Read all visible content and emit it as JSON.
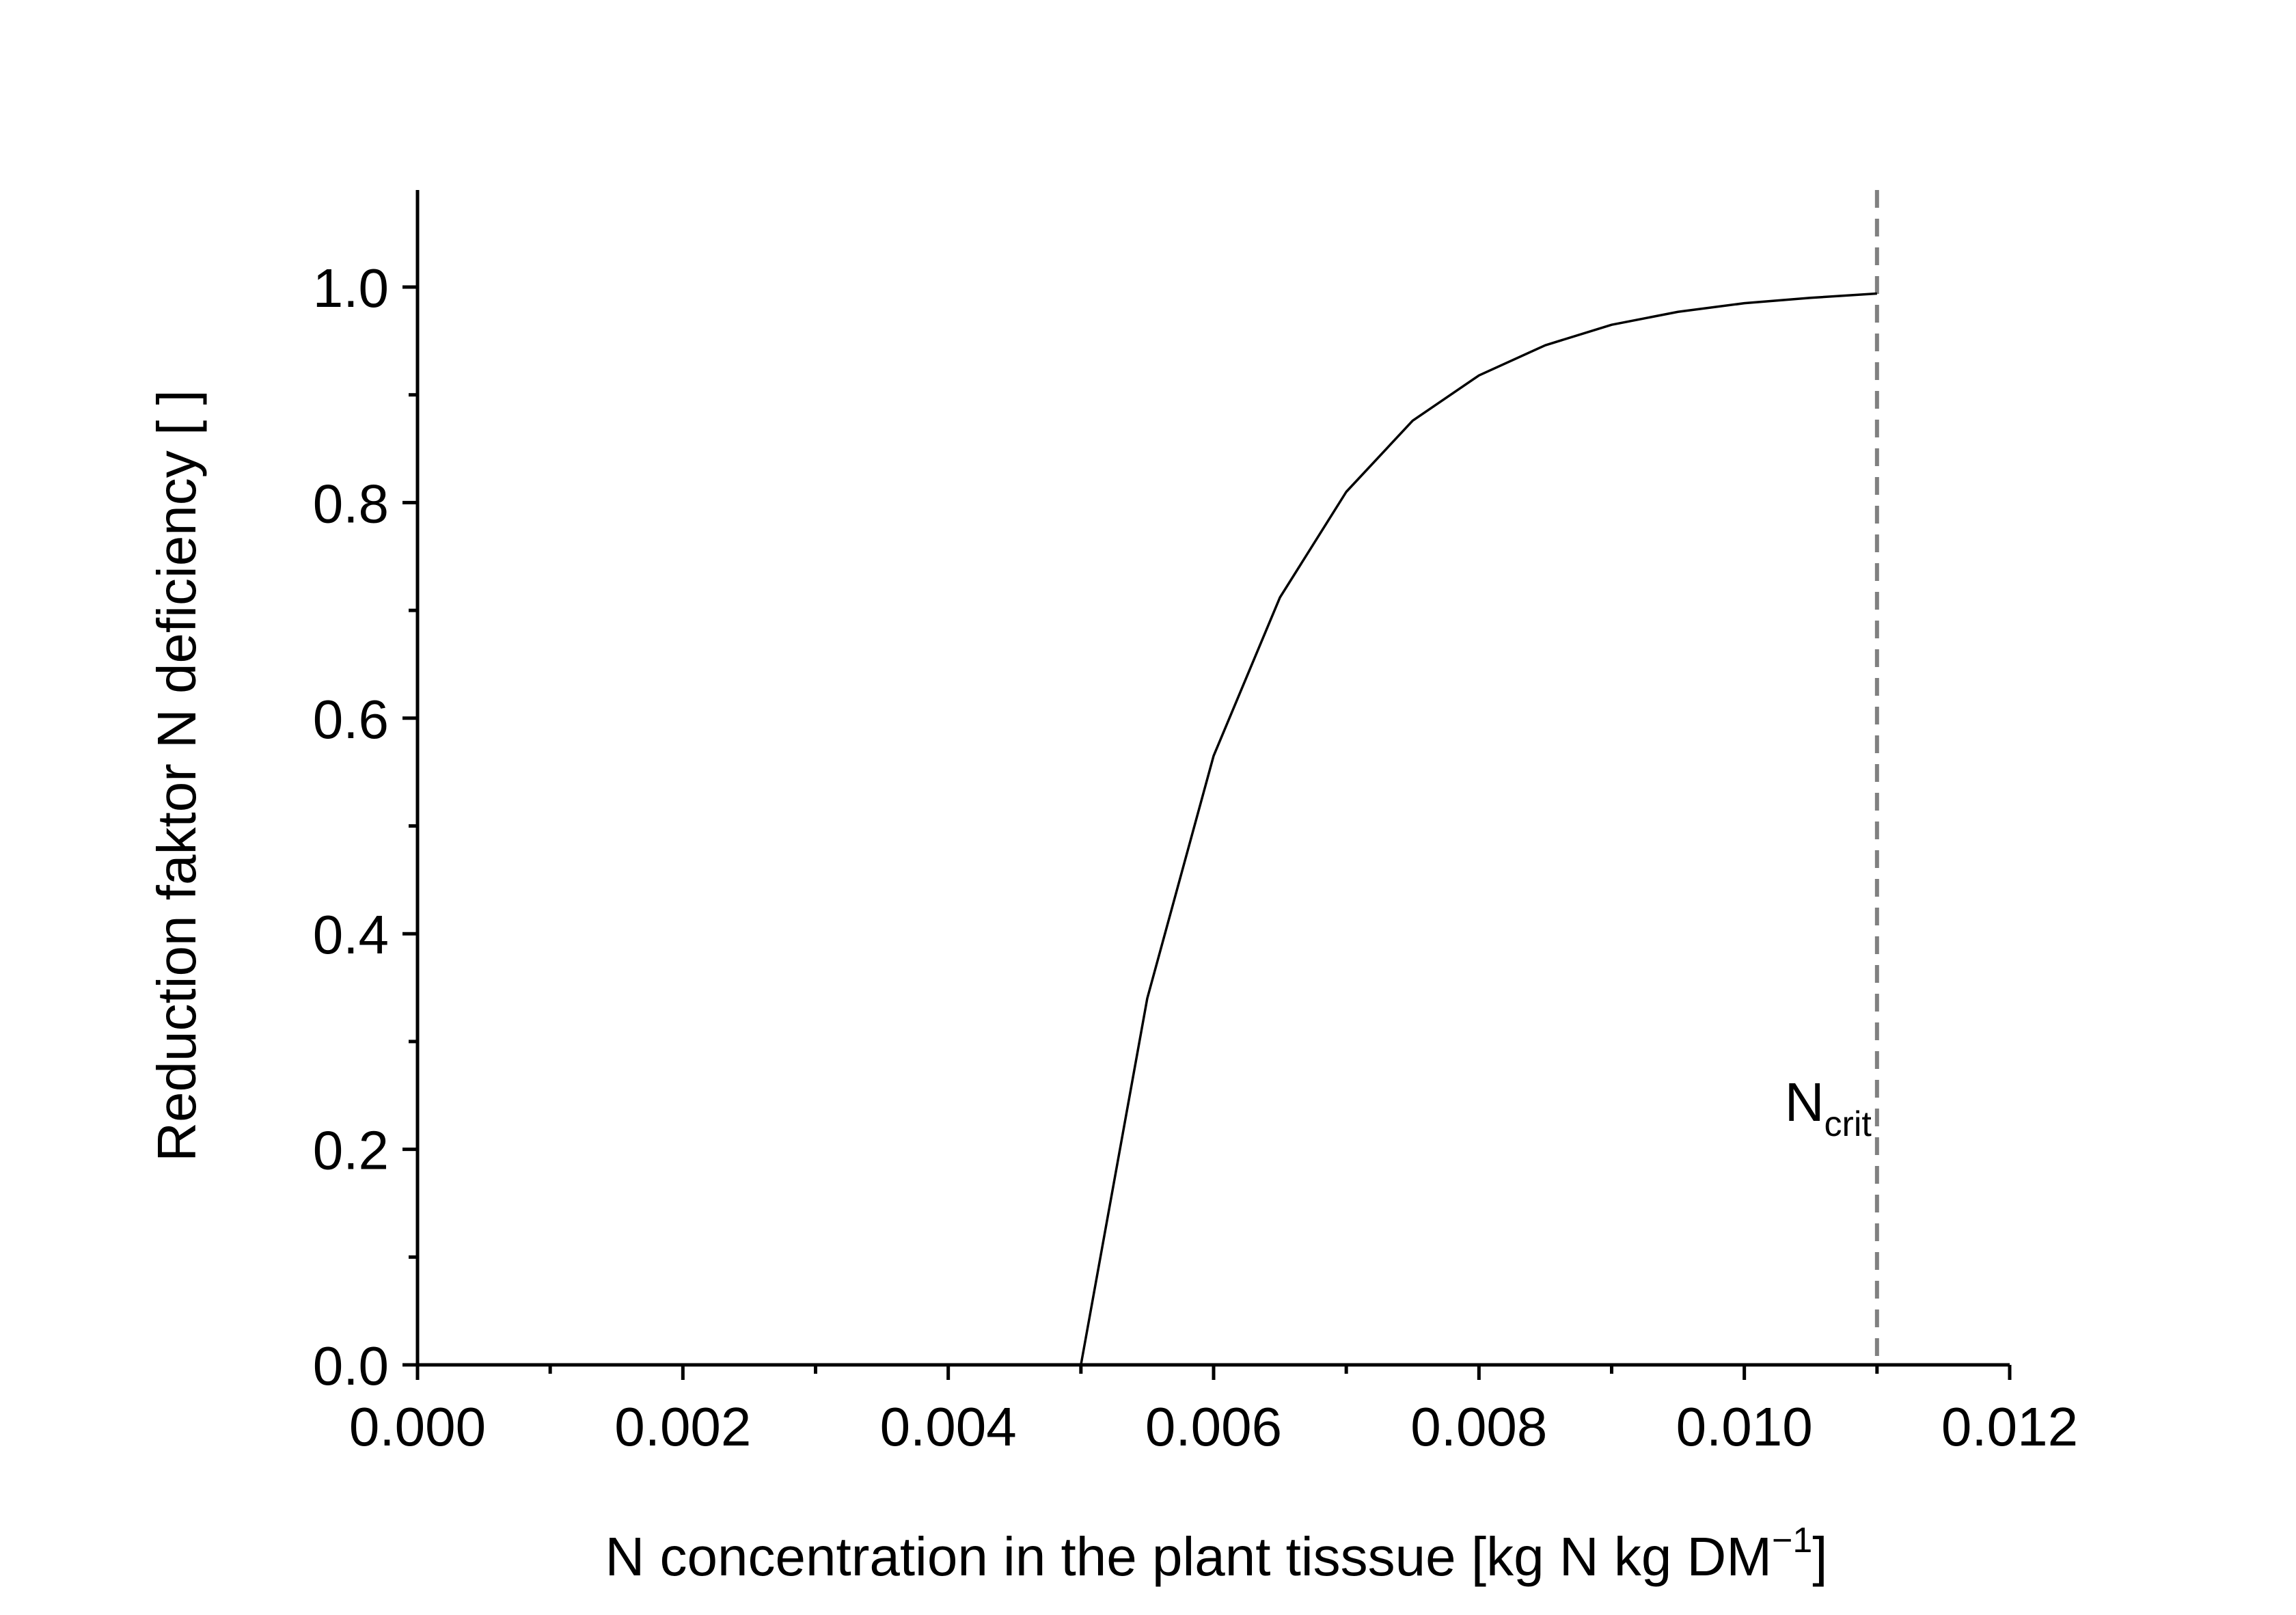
{
  "chart_data": {
    "type": "line",
    "xlabel_main": "N concentration in the plant tisssue [kg N kg DM",
    "xlabel_sup": "−1",
    "xlabel_end": "]",
    "ylabel": "Reduction faktor N deficiency [ ]",
    "xlim": [
      0.0,
      0.012
    ],
    "ylim": [
      0.0,
      1.09
    ],
    "x_ticks": [
      0.0,
      0.002,
      0.004,
      0.006,
      0.008,
      0.01,
      0.012
    ],
    "x_tick_labels": [
      "0.000",
      "0.002",
      "0.004",
      "0.006",
      "0.008",
      "0.010",
      "0.012"
    ],
    "y_ticks": [
      0.0,
      0.2,
      0.4,
      0.6,
      0.8,
      1.0
    ],
    "y_tick_labels": [
      "0.0",
      "0.2",
      "0.4",
      "0.6",
      "0.8",
      "1.0"
    ],
    "grid": false,
    "series": [
      {
        "x": [
          0.0,
          0.005,
          0.0055,
          0.006,
          0.0065,
          0.007,
          0.0075,
          0.008,
          0.0085,
          0.009,
          0.0095,
          0.01,
          0.0105,
          0.011
        ],
        "y": [
          0.0,
          0.0,
          0.34,
          0.565,
          0.712,
          0.81,
          0.876,
          0.918,
          0.946,
          0.965,
          0.977,
          0.985,
          0.99,
          0.994
        ],
        "color": "#000000"
      }
    ],
    "reference_lines": [
      {
        "axis": "x",
        "value": 0.011,
        "style": "dashed",
        "color": "#808080"
      }
    ],
    "annotation": {
      "text": "N",
      "subscript": "crit",
      "x": 0.011,
      "y": 0.22
    }
  }
}
